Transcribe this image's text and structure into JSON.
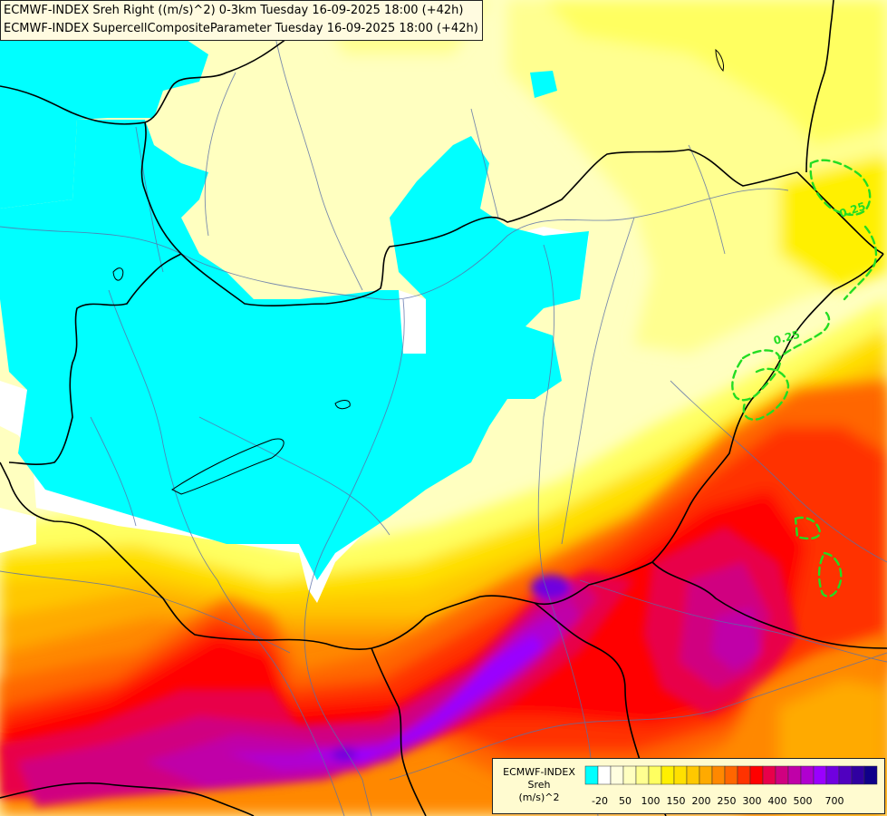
{
  "header": {
    "line1": "ECMWF-INDEX Sreh Right ((m/s)^2) 0-3km Tuesday 16-09-2025 18:00 (+42h)",
    "line2": "ECMWF-INDEX SupercellCompositeParameter Tuesday 16-09-2025 18:00 (+42h)"
  },
  "legend": {
    "title_lines": [
      "ECMWF-INDEX",
      "Sreh",
      "(m/s)^2"
    ],
    "colors": [
      "#00ffff",
      "#ffffff",
      "#fffee0",
      "#ffffc0",
      "#ffff90",
      "#ffff60",
      "#fff000",
      "#ffe000",
      "#ffc800",
      "#ffaa00",
      "#ff8800",
      "#ff6600",
      "#ff3300",
      "#ff0000",
      "#e8004a",
      "#d00080",
      "#c000a8",
      "#b000d0",
      "#9a00ff",
      "#7000e0",
      "#5000c0",
      "#3000a0",
      "#10008a"
    ],
    "tick_labels": [
      "-20",
      "50",
      "100",
      "150",
      "200",
      "250",
      "300",
      "400",
      "500",
      "700"
    ]
  },
  "contour_labels": [
    "0.25",
    "0.25"
  ]
}
